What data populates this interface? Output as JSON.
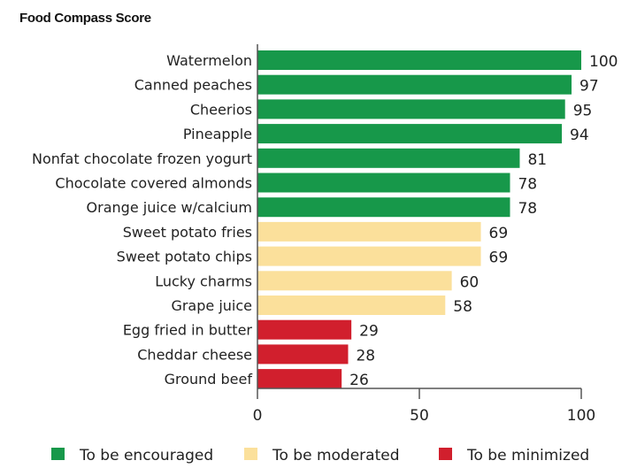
{
  "chart_data": {
    "type": "bar",
    "orientation": "horizontal",
    "title": "Food Compass Score",
    "xlabel": "",
    "ylabel": "",
    "xlim": [
      0,
      100
    ],
    "xticks": [
      0,
      50,
      100
    ],
    "grid": false,
    "legend_position": "bottom",
    "categories": [
      "Watermelon",
      "Canned peaches",
      "Cheerios",
      "Pineapple",
      "Nonfat chocolate frozen yogurt",
      "Chocolate covered almonds",
      "Orange juice w/calcium",
      "Sweet potato fries",
      "Sweet potato chips",
      "Lucky charms",
      "Grape juice",
      "Egg fried in butter",
      "Cheddar cheese",
      "Ground beef"
    ],
    "values": [
      100,
      97,
      95,
      94,
      81,
      78,
      78,
      69,
      69,
      60,
      58,
      29,
      28,
      26
    ],
    "groups": [
      0,
      0,
      0,
      0,
      0,
      0,
      0,
      1,
      1,
      1,
      1,
      2,
      2,
      2
    ],
    "legend": [
      {
        "label": "To be encouraged",
        "color": "#17984a"
      },
      {
        "label": "To be moderated",
        "color": "#fbe09b"
      },
      {
        "label": "To be minimized",
        "color": "#d11f2d"
      }
    ]
  }
}
